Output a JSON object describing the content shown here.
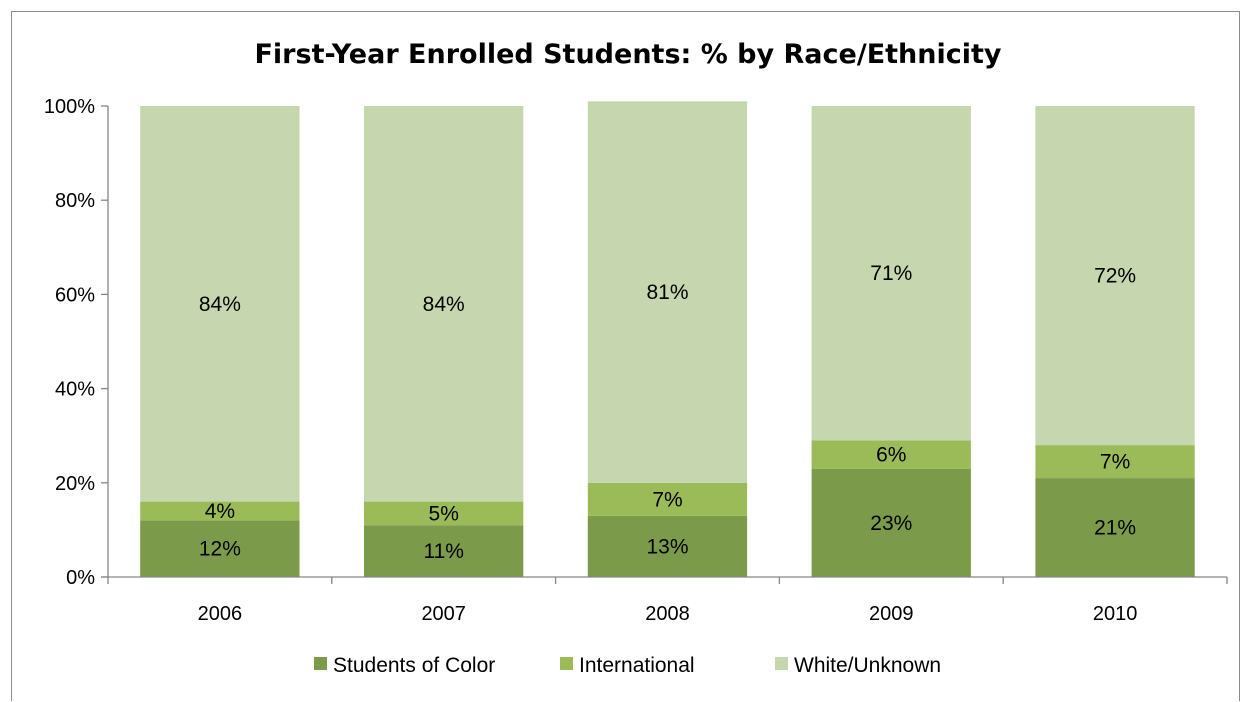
{
  "chart_data": {
    "type": "bar",
    "stacked": true,
    "title": "First-Year Enrolled Students: % by Race/Ethnicity",
    "xlabel": "",
    "ylabel": "",
    "categories": [
      "2006",
      "2007",
      "2008",
      "2009",
      "2010"
    ],
    "ylim": [
      0,
      100
    ],
    "y_ticks": [
      "0%",
      "20%",
      "40%",
      "60%",
      "80%",
      "100%"
    ],
    "grid": false,
    "legend_position": "bottom",
    "series": [
      {
        "name": "Students of Color",
        "color": "#7b9a4a",
        "values": [
          12,
          11,
          13,
          23,
          21
        ],
        "labels": [
          "12%",
          "11%",
          "13%",
          "23%",
          "21%"
        ]
      },
      {
        "name": "International",
        "color": "#9bbb59",
        "values": [
          4,
          5,
          7,
          6,
          7
        ],
        "labels": [
          "4%",
          "5%",
          "7%",
          "6%",
          "7%"
        ]
      },
      {
        "name": "White/Unknown",
        "color": "#c6d6ae",
        "values": [
          84,
          84,
          81,
          71,
          72
        ],
        "labels": [
          "84%",
          "84%",
          "81%",
          "71%",
          "72%"
        ]
      }
    ]
  }
}
